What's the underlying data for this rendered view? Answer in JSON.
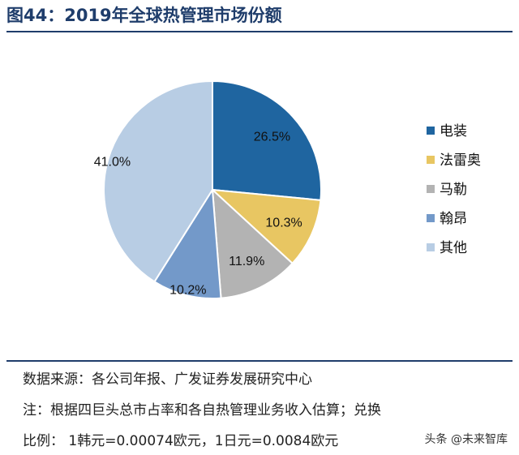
{
  "title": "图44：2019年全球热管理市场份额",
  "chart_data": {
    "type": "pie",
    "title": "",
    "slices": [
      {
        "label": "电装",
        "value": 26.5,
        "value_label": "26.5%",
        "color": "#1f65a0"
      },
      {
        "label": "法雷奥",
        "value": 10.3,
        "value_label": "10.3%",
        "color": "#e8c662"
      },
      {
        "label": "马勒",
        "value": 11.9,
        "value_label": "11.9%",
        "color": "#b3b3b3"
      },
      {
        "label": "翰昂",
        "value": 10.2,
        "value_label": "10.2%",
        "color": "#7399c9"
      },
      {
        "label": "其他",
        "value": 41.0,
        "value_label": "41.0%",
        "color": "#b8cde4"
      }
    ],
    "start_angle_deg": 0,
    "direction": "clockwise",
    "legend_position": "right"
  },
  "notes": {
    "source": "数据来源：各公司年报、广发证券发展研究中心",
    "note_line1": "注：根据四巨头总市占率和各自热管理业务收入估算；兑换",
    "note_line2": "比例： 1韩元=0.00074欧元，1日元=0.0084欧元"
  },
  "watermark": "头条 @未来智库"
}
